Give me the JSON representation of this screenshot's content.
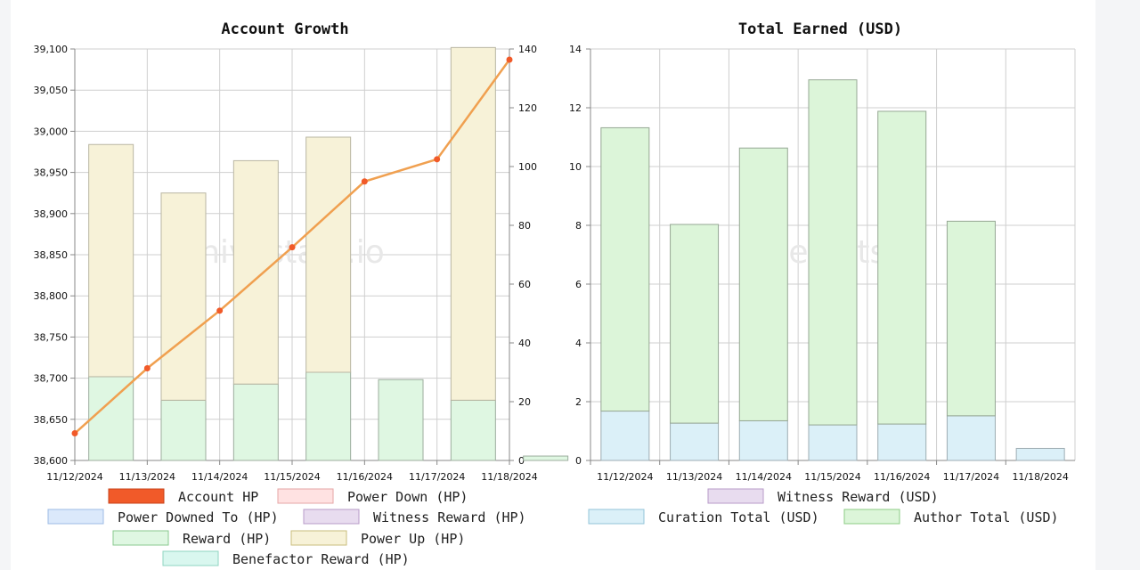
{
  "watermark": "hivestats.io",
  "colors": {
    "account_hp": "#f15a29",
    "account_hp_line": "#f0a050",
    "power_down": "#ffe2e2",
    "power_downed_to": "#dbe9fb",
    "witness_reward": "#e8dcef",
    "reward": "#dff7e2",
    "power_up": "#f7f2d8",
    "benefactor_reward": "#d9f7ef",
    "curation": "#dbf0f8",
    "author": "#dcf5d9"
  },
  "chart_data": [
    {
      "type": "bar",
      "title": "Account Growth",
      "categories": [
        "11/12/2024",
        "11/13/2024",
        "11/14/2024",
        "11/15/2024",
        "11/16/2024",
        "11/17/2024",
        "11/18/2024"
      ],
      "left_axis": {
        "ylim": [
          38600,
          39100
        ],
        "ticks": [
          "38,600",
          "38,650",
          "38,700",
          "38,750",
          "38,800",
          "38,850",
          "38,900",
          "38,950",
          "39,000",
          "39,050",
          "39,100"
        ]
      },
      "right_axis": {
        "ylim": [
          0,
          140
        ],
        "ticks": [
          "0",
          "20",
          "40",
          "60",
          "80",
          "100",
          "120",
          "140"
        ]
      },
      "series": [
        {
          "name": "Account HP",
          "kind": "line",
          "axis": "left",
          "values": [
            38633,
            38712,
            38782,
            38859,
            38939,
            38966,
            39087
          ]
        },
        {
          "name": "Power Down (HP)",
          "kind": "bar",
          "axis": "right",
          "values": [
            0,
            0,
            0,
            0,
            0,
            0,
            0
          ]
        },
        {
          "name": "Power Downed To (HP)",
          "kind": "bar",
          "axis": "right",
          "values": [
            0,
            0,
            0,
            0,
            0,
            0,
            0
          ]
        },
        {
          "name": "Witness Reward (HP)",
          "kind": "bar",
          "axis": "right",
          "values": [
            0,
            0,
            0,
            0,
            0,
            0,
            0
          ]
        },
        {
          "name": "Reward (HP)",
          "kind": "bar",
          "axis": "right",
          "values": [
            28.5,
            20.5,
            26,
            30,
            27.5,
            20.5,
            1.5
          ]
        },
        {
          "name": "Power Up (HP)",
          "kind": "bar",
          "axis": "right",
          "values": [
            79,
            70.5,
            76,
            80,
            0,
            120,
            0
          ]
        },
        {
          "name": "Benefactor Reward (HP)",
          "kind": "bar",
          "axis": "right",
          "values": [
            0,
            0,
            0,
            0,
            0,
            0,
            0
          ]
        }
      ],
      "legend": [
        "Account HP",
        "Power Down (HP)",
        "Power Downed To (HP)",
        "Witness Reward (HP)",
        "Reward (HP)",
        "Power Up (HP)",
        "Benefactor Reward (HP)"
      ],
      "grid": true,
      "legend_placement": "bottom"
    },
    {
      "type": "bar",
      "title": "Total Earned (USD)",
      "categories": [
        "11/12/2024",
        "11/13/2024",
        "11/14/2024",
        "11/15/2024",
        "11/16/2024",
        "11/17/2024",
        "11/18/2024"
      ],
      "ylim": [
        0,
        14
      ],
      "ticks": [
        "0",
        "2",
        "4",
        "6",
        "8",
        "10",
        "12",
        "14"
      ],
      "stacked": true,
      "series": [
        {
          "name": "Witness Reward (USD)",
          "values": [
            0,
            0,
            0,
            0,
            0,
            0,
            0
          ]
        },
        {
          "name": "Curation Total (USD)",
          "values": [
            1.68,
            1.27,
            1.35,
            1.21,
            1.24,
            1.52,
            0.41
          ]
        },
        {
          "name": "Author Total (USD)",
          "values": [
            9.64,
            6.76,
            9.28,
            11.74,
            10.64,
            6.62,
            0
          ]
        }
      ],
      "legend": [
        "Witness Reward (USD)",
        "Curation Total (USD)",
        "Author Total (USD)"
      ],
      "grid": true,
      "legend_placement": "bottom"
    }
  ]
}
